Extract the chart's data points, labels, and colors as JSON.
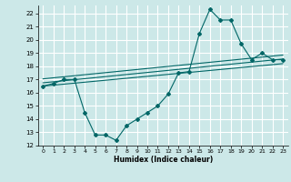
{
  "title": "",
  "xlabel": "Humidex (Indice chaleur)",
  "bg_color": "#cce8e8",
  "grid_color": "#ffffff",
  "line_color": "#006666",
  "xlim": [
    -0.5,
    23.5
  ],
  "ylim": [
    12,
    22.6
  ],
  "xticks": [
    0,
    1,
    2,
    3,
    4,
    5,
    6,
    7,
    8,
    9,
    10,
    11,
    12,
    13,
    14,
    15,
    16,
    17,
    18,
    19,
    20,
    21,
    22,
    23
  ],
  "yticks": [
    12,
    13,
    14,
    15,
    16,
    17,
    18,
    19,
    20,
    21,
    22
  ],
  "main_line_x": [
    0,
    1,
    2,
    3,
    4,
    5,
    6,
    7,
    8,
    9,
    10,
    11,
    12,
    13,
    14,
    15,
    16,
    17,
    18,
    19,
    20,
    21,
    22,
    23
  ],
  "main_line_y": [
    16.5,
    16.7,
    17.0,
    17.0,
    14.5,
    12.8,
    12.8,
    12.4,
    13.5,
    14.0,
    14.5,
    15.0,
    15.9,
    17.5,
    17.6,
    20.5,
    22.3,
    21.5,
    21.5,
    19.7,
    18.5,
    19.0,
    18.5,
    18.5
  ],
  "trend1_x": [
    0,
    23
  ],
  "trend1_y": [
    16.5,
    18.2
  ],
  "trend2_x": [
    0,
    23
  ],
  "trend2_y": [
    16.75,
    18.55
  ],
  "trend3_x": [
    0,
    23
  ],
  "trend3_y": [
    17.05,
    18.85
  ]
}
